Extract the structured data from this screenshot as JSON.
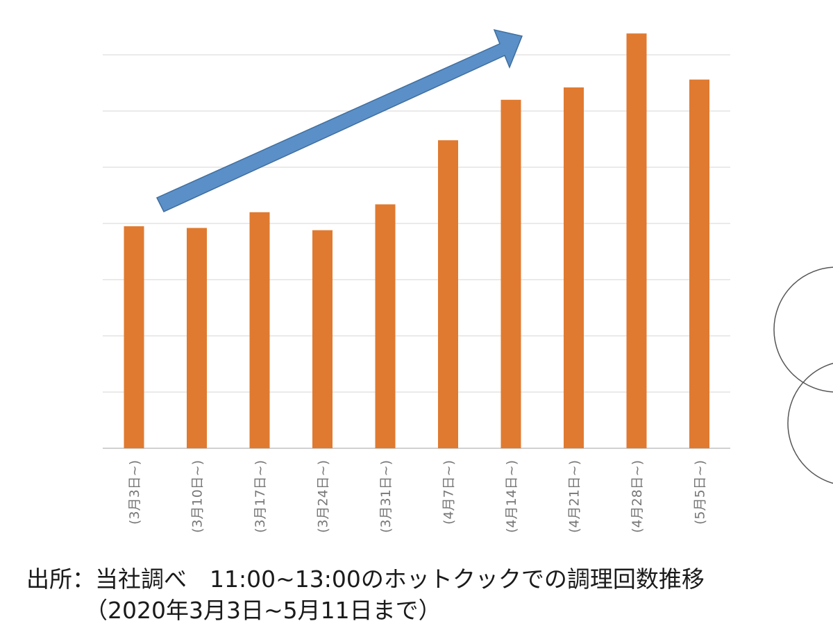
{
  "chart_data": {
    "type": "bar",
    "title": "",
    "xlabel": "",
    "ylabel": "",
    "categories": [
      "(3月3日~)",
      "(3月10日~)",
      "(3月17日~)",
      "(3月24日~)",
      "(3月31日~)",
      "(4月7日~)",
      "(4月14日~)",
      "(4月21日~)",
      "(4月28日~)",
      "(5月5日~)"
    ],
    "values": [
      3.95,
      3.92,
      4.2,
      3.88,
      4.34,
      5.48,
      6.2,
      6.42,
      7.38,
      6.56
    ],
    "ylim": [
      0,
      8
    ],
    "grid": true,
    "bar_color": "#E07A30",
    "trend_arrow_color": "#5B8FC7"
  },
  "caption": {
    "source": "出所：当社調べ　11:00~13:00のホットクックでの調理回数推移",
    "period": "（2020年3月3日~5月11日まで）"
  }
}
